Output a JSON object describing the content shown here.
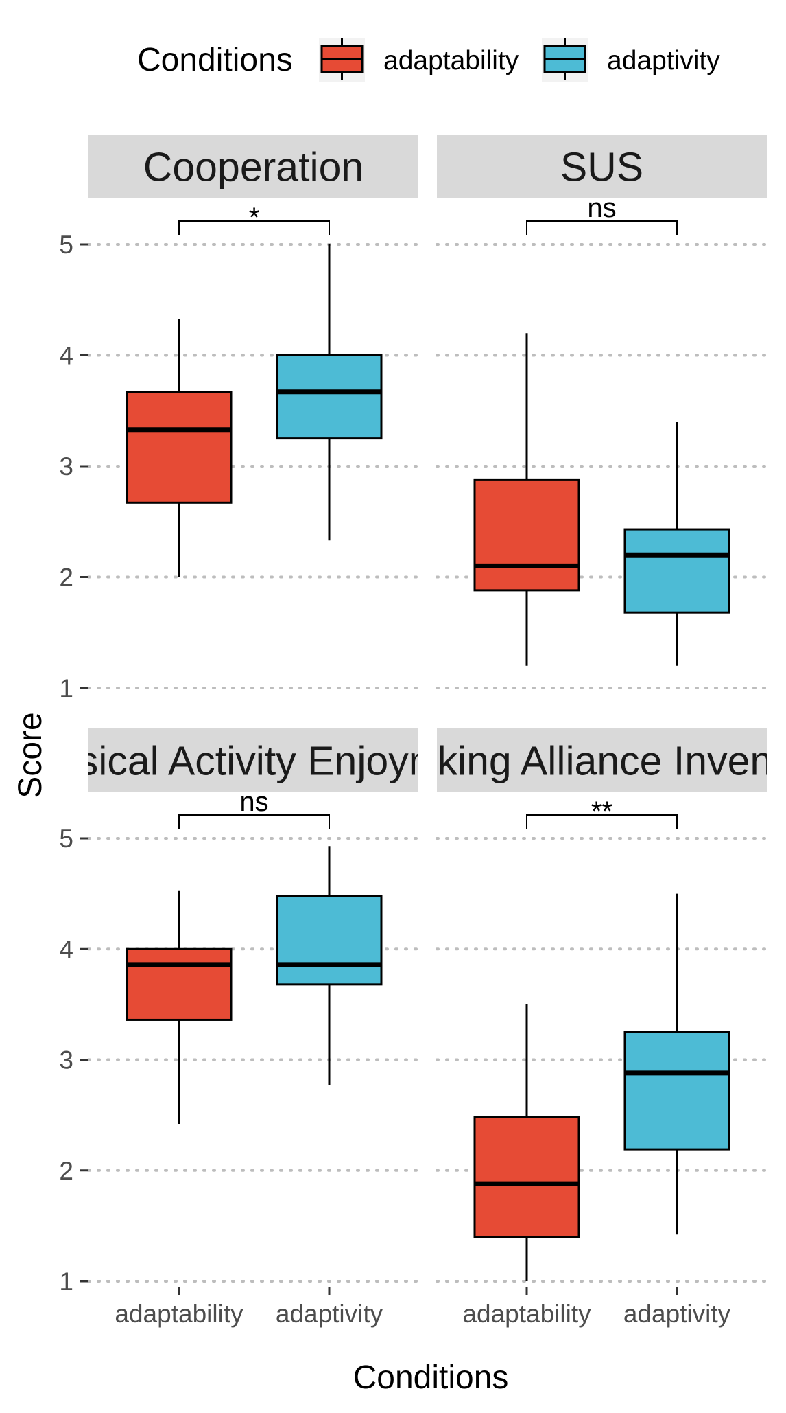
{
  "chart_data": {
    "type": "boxplot",
    "legend": {
      "title": "Conditions",
      "position": "top",
      "entries": [
        {
          "label": "adaptability",
          "color": "#E64B35"
        },
        {
          "label": "adaptivity",
          "color": "#4DBBD5"
        }
      ]
    },
    "xlabel": "Conditions",
    "ylabel": "Score",
    "ylim": [
      1,
      5
    ],
    "yticks": [
      "1",
      "2",
      "3",
      "4",
      "5"
    ],
    "categories": [
      "adaptability",
      "adaptivity"
    ],
    "grid": "horizontal dotted",
    "panels": [
      {
        "title": "Cooperation",
        "significance": "*",
        "boxes": [
          {
            "group": "adaptability",
            "min": 2.0,
            "q1": 2.67,
            "median": 3.33,
            "q3": 3.67,
            "max": 4.33
          },
          {
            "group": "adaptivity",
            "min": 2.33,
            "q1": 3.25,
            "median": 3.67,
            "q3": 4.0,
            "max": 5.0
          }
        ]
      },
      {
        "title": "SUS",
        "significance": "ns",
        "boxes": [
          {
            "group": "adaptability",
            "min": 1.2,
            "q1": 1.88,
            "median": 2.1,
            "q3": 2.88,
            "max": 4.2
          },
          {
            "group": "adaptivity",
            "min": 1.2,
            "q1": 1.68,
            "median": 2.2,
            "q3": 2.43,
            "max": 3.4
          }
        ]
      },
      {
        "title": "Physical Activity Enjoyment",
        "significance": "ns",
        "boxes": [
          {
            "group": "adaptability",
            "min": 2.42,
            "q1": 3.36,
            "median": 3.86,
            "q3": 4.0,
            "max": 4.53
          },
          {
            "group": "adaptivity",
            "min": 2.77,
            "q1": 3.68,
            "median": 3.86,
            "q3": 4.48,
            "max": 4.93
          }
        ]
      },
      {
        "title": "Working Alliance Inventory",
        "significance": "**",
        "boxes": [
          {
            "group": "adaptability",
            "min": 1.0,
            "q1": 1.4,
            "median": 1.88,
            "q3": 2.48,
            "max": 3.5
          },
          {
            "group": "adaptivity",
            "min": 1.42,
            "q1": 2.19,
            "median": 2.88,
            "q3": 3.25,
            "max": 4.5
          }
        ]
      }
    ]
  }
}
